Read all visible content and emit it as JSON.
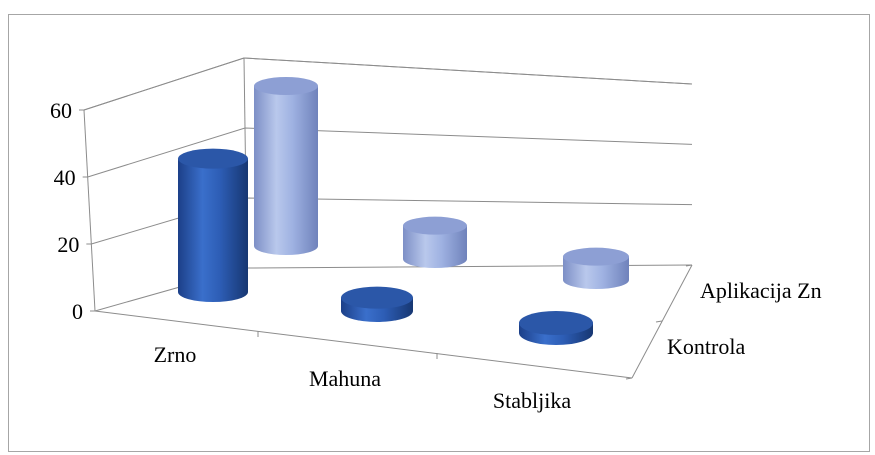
{
  "chart_data": {
    "type": "bar",
    "variant": "3d-cylinder",
    "categories": [
      "Zrno",
      "Mahuna",
      "Stabljika"
    ],
    "series": [
      {
        "name": "Kontrola",
        "values": [
          40,
          4,
          3
        ],
        "color": "#2f5fb3"
      },
      {
        "name": "Aplikacija Zn",
        "values": [
          48,
          10,
          7
        ],
        "color": "#8ea3d6"
      }
    ],
    "ylim": [
      0,
      60
    ],
    "yticks": [
      "0",
      "20",
      "40",
      "60"
    ],
    "grid": true
  }
}
